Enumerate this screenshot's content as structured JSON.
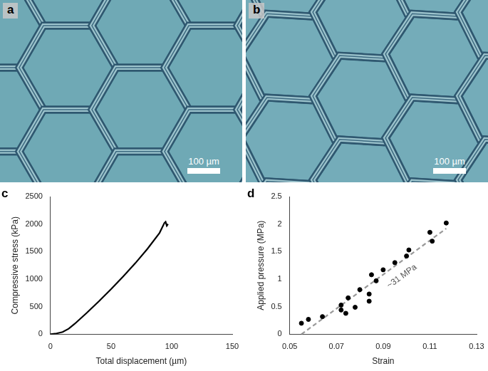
{
  "images": [
    {
      "panel": "a",
      "scale_bar": "100 µm"
    },
    {
      "panel": "b",
      "scale_bar": "100 µm"
    }
  ],
  "chart_data": [
    {
      "panel": "c",
      "type": "line",
      "x_label": "Total displacement (µm)",
      "y_label": "Compressive stress (kPa)",
      "x": [
        0,
        5,
        10,
        15,
        20,
        25,
        30,
        40,
        50,
        60,
        70,
        80,
        90,
        94,
        95,
        96,
        97
      ],
      "values": [
        0,
        15,
        40,
        100,
        190,
        290,
        390,
        600,
        820,
        1050,
        1290,
        1550,
        1840,
        2020,
        2040,
        1970,
        2000
      ],
      "color": "#000000",
      "xlim": [
        0,
        150
      ],
      "xticks": [
        0,
        50,
        100,
        150
      ],
      "ylim": [
        0,
        2500
      ],
      "yticks": [
        0,
        500,
        1000,
        1500,
        2000,
        2500
      ],
      "grid": false
    },
    {
      "panel": "d",
      "type": "scatter",
      "x_label": "Strain",
      "y_label": "Applied pressure (MPa)",
      "series": [
        {
          "type": "scatter",
          "color": "#000000",
          "marker": "circle",
          "x": [
            0.055,
            0.058,
            0.064,
            0.072,
            0.072,
            0.074,
            0.075,
            0.078,
            0.08,
            0.084,
            0.084,
            0.085,
            0.087,
            0.09,
            0.095,
            0.1,
            0.101,
            0.11,
            0.111,
            0.117
          ],
          "values": [
            0.2,
            0.27,
            0.32,
            0.53,
            0.44,
            0.38,
            0.66,
            0.49,
            0.81,
            0.6,
            0.73,
            1.08,
            0.97,
            1.17,
            1.3,
            1.42,
            1.53,
            1.85,
            1.69,
            2.02
          ]
        },
        {
          "type": "line",
          "color": "#999999",
          "line_style": "dashed",
          "x": [
            0.055,
            0.117
          ],
          "values": [
            0,
            1.92
          ]
        }
      ],
      "annotations": [
        {
          "text": "~31 MPa",
          "x": 0.098,
          "y": 1.05
        }
      ],
      "xlim": [
        0.05,
        0.13
      ],
      "xticks": [
        0.05,
        0.07,
        0.09,
        0.11,
        0.13
      ],
      "ylim": [
        0,
        2.5
      ],
      "yticks": [
        0,
        0.5,
        1,
        1.5,
        2,
        2.5
      ],
      "grid": false
    }
  ]
}
